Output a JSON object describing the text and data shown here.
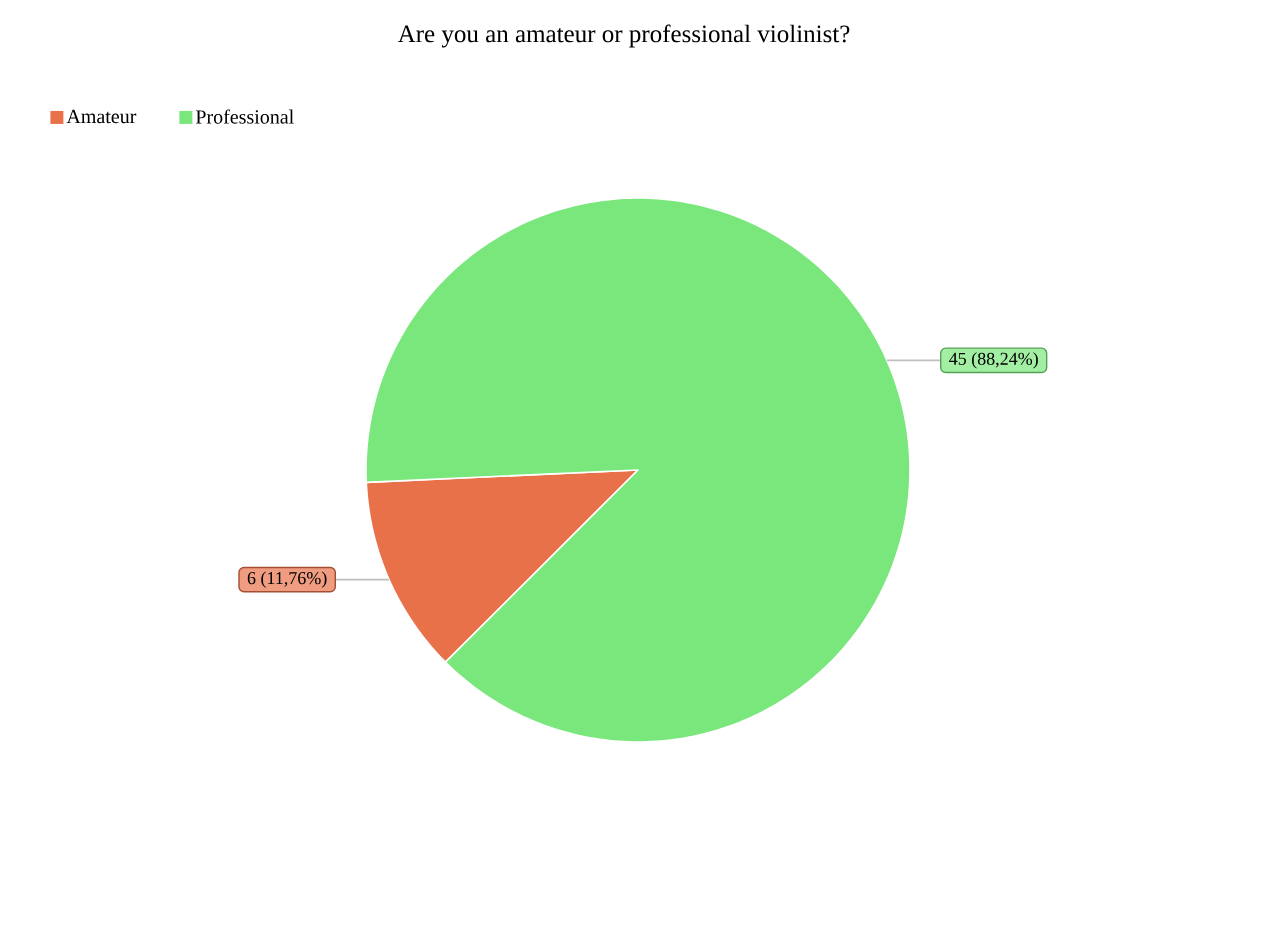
{
  "chart_data": {
    "type": "pie",
    "title": "Are you an amateur or professional violinist?",
    "categories": [
      "Amateur",
      "Professional"
    ],
    "values": [
      6,
      45
    ],
    "colors": [
      "#e8714a",
      "#7ae77c"
    ],
    "value_labels": [
      "6 (11,76%)",
      "45 (88,24%)"
    ],
    "legend": "top left"
  }
}
